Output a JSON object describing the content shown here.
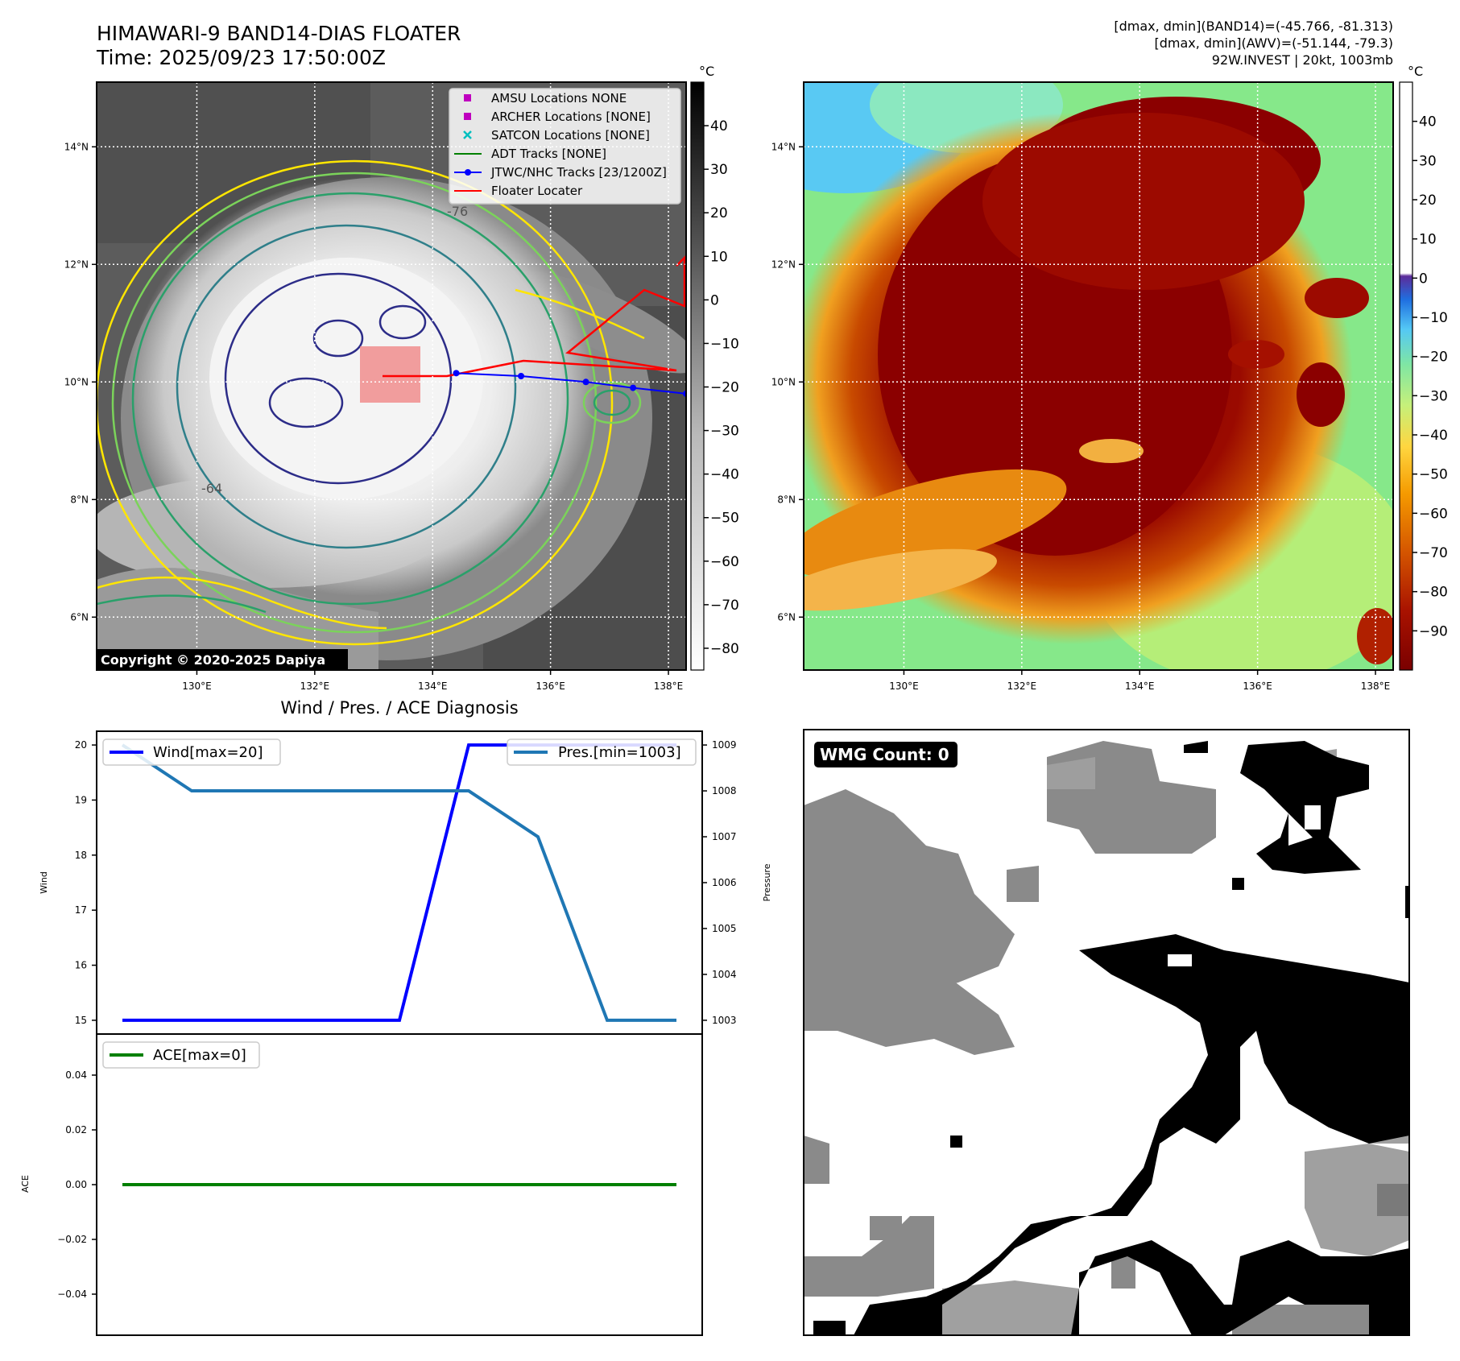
{
  "header": {
    "title": "HIMAWARI-9 BAND14-DIAS FLOATER",
    "time": "Time: 2025/09/23 17:50:00Z",
    "stat_band14": "[dmax, dmin](BAND14)=(-45.766, -81.313)",
    "stat_awv": "[dmax, dmin](AWV)=(-51.144, -79.3)",
    "storm": "92W.INVEST | 20kt, 1003mb"
  },
  "copyright": "Copyright © 2020-2025 Dapiya",
  "colors": {
    "wind": "#0000ff",
    "pressure": "#1f77b4",
    "ace": "#008000",
    "jtwc": "#0000ff",
    "floater": "#ff0000",
    "amsu": "#bf00bf",
    "archer": "#bf00bf",
    "satcon": "#00bfbf",
    "adt": "#008000"
  },
  "maps": {
    "lon_ticks": [
      "130°E",
      "132°E",
      "134°E",
      "136°E",
      "138°E"
    ],
    "lat_ticks": [
      "14°N",
      "12°N",
      "10°N",
      "8°N",
      "6°N"
    ],
    "lon_range": [
      128.3,
      138.3
    ],
    "lat_range": [
      5.1,
      15.1
    ],
    "ir_colorbar": {
      "unit": "°C",
      "ticks": [
        "40",
        "30",
        "20",
        "10",
        "0",
        "−10",
        "−20",
        "−30",
        "−40",
        "−50",
        "−60",
        "−70",
        "−80"
      ],
      "range": [
        -85,
        50
      ]
    },
    "awv_colorbar": {
      "unit": "°C",
      "ticks": [
        "40",
        "30",
        "20",
        "10",
        "0",
        "−10",
        "−20",
        "−30",
        "−40",
        "−50",
        "−60",
        "−70",
        "−80",
        "−90"
      ],
      "range": [
        -100,
        50
      ]
    },
    "legend": [
      {
        "label": "AMSU Locations NONE",
        "marker": "square",
        "color": "#bf00bf"
      },
      {
        "label": "ARCHER Locations [NONE]",
        "marker": "square",
        "color": "#bf00bf"
      },
      {
        "label": "SATCON Locations [NONE]",
        "marker": "x",
        "color": "#00bfbf"
      },
      {
        "label": "ADT Tracks [NONE]",
        "marker": "line",
        "color": "#008000"
      },
      {
        "label": "JTWC/NHC Tracks [23/1200Z]",
        "marker": "line-dot",
        "color": "#0000ff"
      },
      {
        "label": "Floater Locater",
        "marker": "line",
        "color": "#ff0000"
      }
    ],
    "jtwc_track": [
      [
        138.3,
        9.8
      ],
      [
        137.4,
        9.9
      ],
      [
        136.6,
        10.0
      ],
      [
        135.5,
        10.1
      ],
      [
        134.4,
        10.15
      ]
    ],
    "contour_labels": [
      "-76",
      "-64"
    ]
  },
  "diagnosis_title": "Wind / Pres. / ACE Diagnosis",
  "wmg_label": "WMG Count: 0",
  "chart_data": {
    "type": "line",
    "title": "Wind / Pres. / ACE Diagnosis",
    "x": [
      0,
      1,
      2,
      3,
      4,
      5,
      6,
      7,
      8
    ],
    "series": [
      {
        "name": "Wind[max=20]",
        "axis": "Wind",
        "values": [
          15,
          15,
          15,
          15,
          15,
          20,
          20,
          20,
          20
        ]
      },
      {
        "name": "Pres.[min=1003]",
        "axis": "Pressure",
        "values": [
          1009,
          1008,
          1008,
          1008,
          1008,
          1008,
          1007,
          1003,
          1003
        ]
      },
      {
        "name": "ACE[max=0]",
        "axis": "ACE",
        "values": [
          0,
          0,
          0,
          0,
          0,
          0,
          0,
          0,
          0
        ]
      }
    ],
    "wind_axis": {
      "label": "Wind",
      "ticks": [
        "20",
        "19",
        "18",
        "17",
        "16",
        "15"
      ],
      "ylim": [
        14.75,
        20.25
      ]
    },
    "pressure_axis": {
      "label": "Pressure",
      "ticks": [
        "1009",
        "1008",
        "1007",
        "1006",
        "1005",
        "1004",
        "1003"
      ],
      "ylim": [
        1002.7,
        1009.3
      ]
    },
    "ace_axis": {
      "label": "ACE",
      "ticks": [
        "0.04",
        "0.02",
        "0.00",
        "−0.02",
        "−0.04"
      ],
      "ylim": [
        -0.055,
        0.055
      ]
    },
    "grid": false,
    "legend": [
      "top-left",
      "top-right"
    ]
  }
}
